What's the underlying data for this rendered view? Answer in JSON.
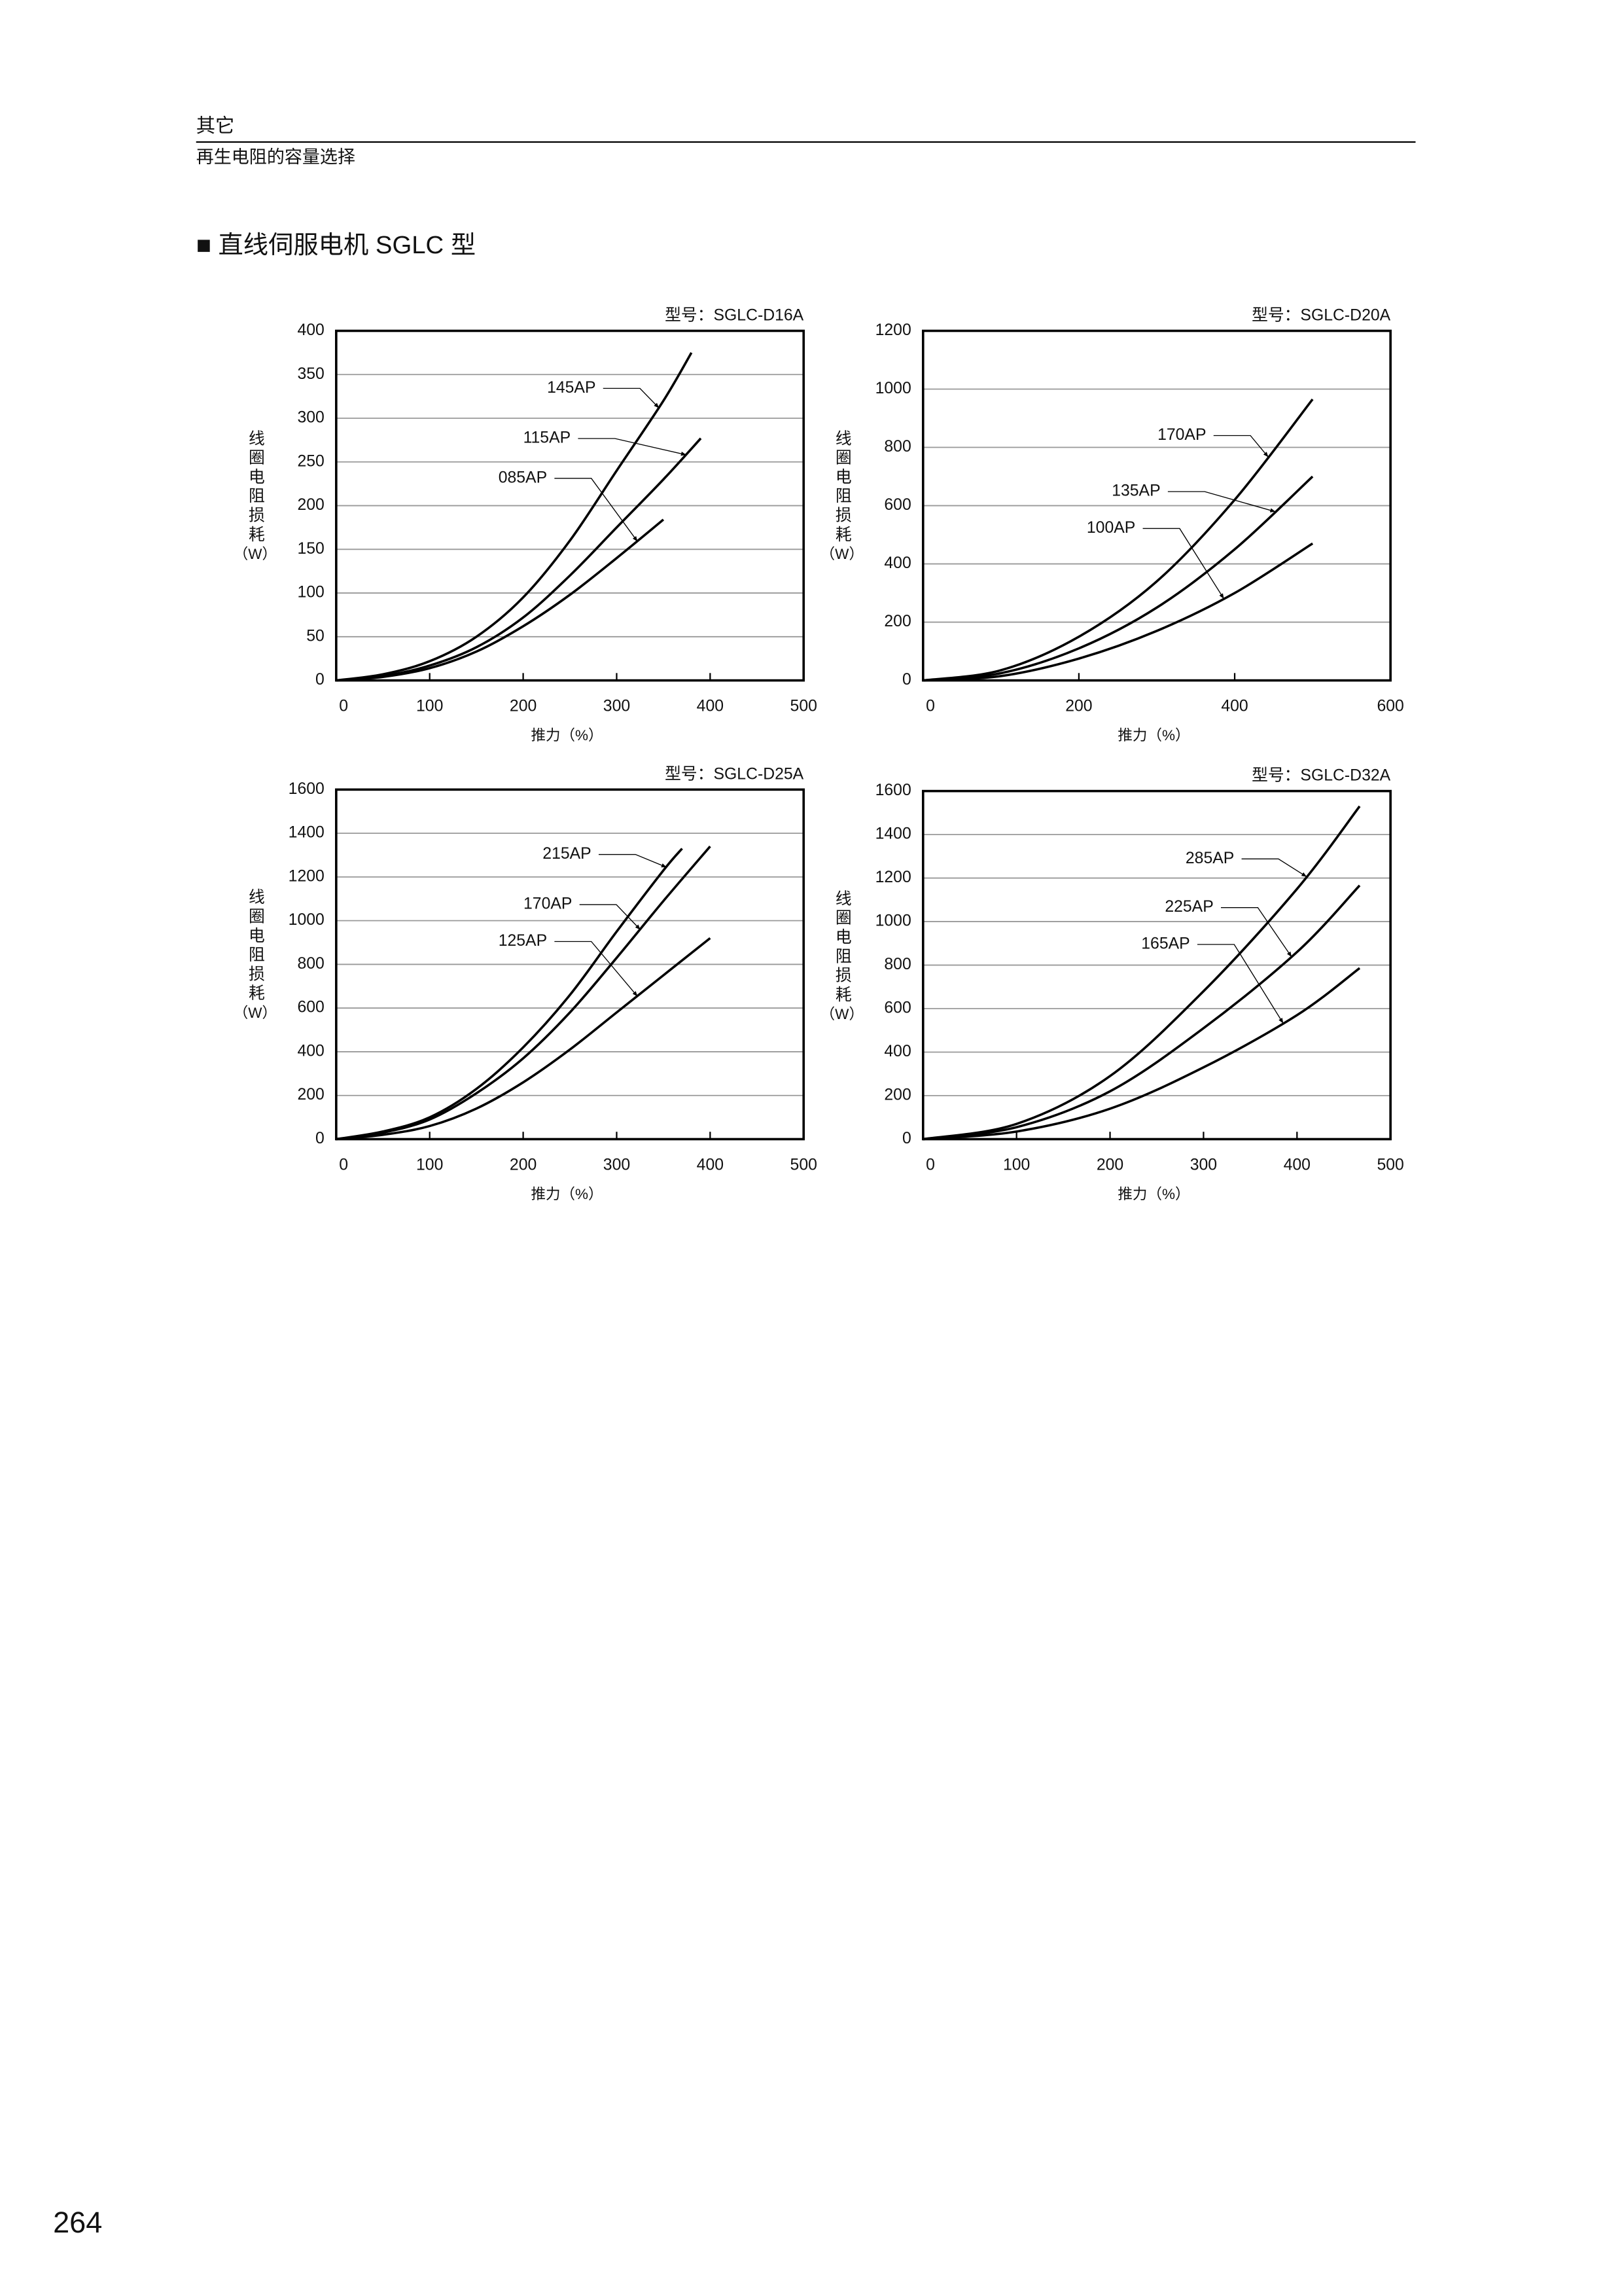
{
  "header": {
    "section": "其它",
    "subsection": "再生电阻的容量选择",
    "heading": "■ 直线伺服电机 SGLC 型"
  },
  "page_number": "264",
  "chart_data": [
    {
      "type": "line",
      "title": "型号：SGLC-D16A",
      "y_label": "线圈电阻损耗",
      "y_unit": "（W）",
      "x_label": "推力（%）",
      "xlim": [
        0,
        500
      ],
      "xticks": [
        0,
        100,
        200,
        300,
        400,
        500
      ],
      "ylim": [
        0,
        400
      ],
      "yticks": [
        0,
        50,
        100,
        150,
        200,
        250,
        300,
        350,
        400
      ],
      "grid": true,
      "series": [
        {
          "name": "145AP",
          "color": "#000000",
          "x": [
            0,
            50,
            100,
            150,
            200,
            250,
            300,
            350,
            380
          ],
          "values": [
            0,
            7,
            22,
            50,
            95,
            160,
            240,
            320,
            375
          ]
        },
        {
          "name": "115AP",
          "color": "#000000",
          "x": [
            0,
            50,
            100,
            150,
            200,
            250,
            300,
            350,
            390
          ],
          "values": [
            0,
            5,
            17,
            38,
            72,
            120,
            175,
            230,
            277
          ]
        },
        {
          "name": "085AP",
          "color": "#000000",
          "x": [
            0,
            50,
            100,
            150,
            200,
            250,
            300,
            350
          ],
          "values": [
            0,
            4,
            14,
            33,
            62,
            98,
            140,
            184
          ]
        }
      ]
    },
    {
      "type": "line",
      "title": "型号：SGLC-D20A",
      "y_label": "线圈电阻损耗",
      "y_unit": "（W）",
      "x_label": "推力（%）",
      "xlim": [
        0,
        600
      ],
      "xticks": [
        0,
        200,
        400,
        600
      ],
      "ylim": [
        0,
        1200
      ],
      "yticks": [
        0,
        200,
        400,
        600,
        800,
        1000,
        1200
      ],
      "grid": true,
      "series": [
        {
          "name": "170AP",
          "color": "#000000",
          "x": [
            0,
            100,
            200,
            300,
            400,
            500
          ],
          "values": [
            0,
            35,
            150,
            340,
            620,
            965
          ]
        },
        {
          "name": "135AP",
          "color": "#000000",
          "x": [
            0,
            100,
            200,
            300,
            400,
            500
          ],
          "values": [
            0,
            25,
            110,
            250,
            450,
            700
          ]
        },
        {
          "name": "100AP",
          "color": "#000000",
          "x": [
            0,
            100,
            200,
            300,
            400,
            500
          ],
          "values": [
            0,
            15,
            75,
            170,
            300,
            470
          ]
        }
      ]
    },
    {
      "type": "line",
      "title": "型号：SGLC-D25A",
      "y_label": "线圈电阻损耗",
      "y_unit": "（W）",
      "x_label": "推力（%）",
      "xlim": [
        0,
        500
      ],
      "xticks": [
        0,
        100,
        200,
        300,
        400,
        500
      ],
      "ylim": [
        0,
        1600
      ],
      "yticks": [
        0,
        200,
        400,
        600,
        800,
        1000,
        1200,
        1400,
        1600
      ],
      "grid": true,
      "series": [
        {
          "name": "215AP",
          "color": "#000000",
          "x": [
            0,
            50,
            100,
            150,
            200,
            250,
            300,
            350,
            370
          ],
          "values": [
            0,
            35,
            100,
            230,
            420,
            660,
            950,
            1230,
            1330
          ]
        },
        {
          "name": "170AP",
          "color": "#000000",
          "x": [
            0,
            50,
            100,
            150,
            200,
            250,
            300,
            350,
            400
          ],
          "values": [
            0,
            30,
            90,
            210,
            370,
            580,
            830,
            1090,
            1340
          ]
        },
        {
          "name": "125AP",
          "color": "#000000",
          "x": [
            0,
            50,
            100,
            150,
            200,
            250,
            300,
            350,
            400
          ],
          "values": [
            0,
            20,
            60,
            140,
            260,
            410,
            580,
            750,
            920
          ]
        }
      ]
    },
    {
      "type": "line",
      "title": "型号：SGLC-D32A",
      "y_label": "线圈电阻损耗",
      "y_unit": "（W）",
      "x_label": "推力（%）",
      "xlim": [
        0,
        500
      ],
      "xticks": [
        0,
        100,
        200,
        300,
        400,
        500
      ],
      "ylim": [
        0,
        1600
      ],
      "yticks": [
        0,
        200,
        400,
        600,
        800,
        1000,
        1200,
        1400,
        1600
      ],
      "grid": true,
      "series": [
        {
          "name": "285AP",
          "color": "#000000",
          "x": [
            0,
            100,
            200,
            300,
            400,
            467
          ],
          "values": [
            0,
            70,
            290,
            680,
            1150,
            1530
          ]
        },
        {
          "name": "225AP",
          "color": "#000000",
          "x": [
            0,
            100,
            200,
            300,
            400,
            467
          ],
          "values": [
            0,
            55,
            220,
            510,
            860,
            1166
          ]
        },
        {
          "name": "165AP",
          "color": "#000000",
          "x": [
            0,
            100,
            200,
            300,
            400,
            467
          ],
          "values": [
            0,
            35,
            140,
            330,
            570,
            786
          ]
        }
      ]
    }
  ]
}
